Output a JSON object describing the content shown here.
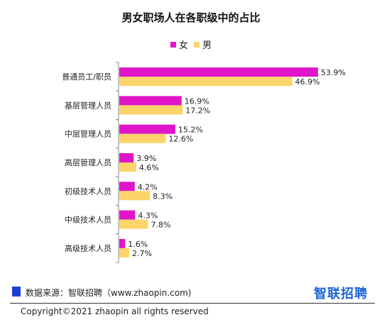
{
  "chart_data": {
    "type": "bar",
    "orientation": "horizontal",
    "title": "男女职场人在各职级中的占比",
    "categories": [
      "普通员工/职员",
      "基层管理人员",
      "中层管理人员",
      "高层管理人员",
      "初级技术人员",
      "中级技术人员",
      "高级技术人员"
    ],
    "series": [
      {
        "name": "女",
        "color": "#e014c8",
        "values": [
          53.9,
          16.9,
          15.2,
          3.9,
          4.2,
          4.3,
          1.6
        ],
        "labels": [
          "53.9%",
          "16.9%",
          "15.2%",
          "3.9%",
          "4.2%",
          "4.3%",
          "1.6%"
        ]
      },
      {
        "name": "男",
        "color": "#fdd46a",
        "values": [
          46.9,
          17.2,
          12.6,
          4.6,
          8.3,
          7.8,
          2.7
        ],
        "labels": [
          "46.9%",
          "17.2%",
          "12.6%",
          "4.6%",
          "8.3%",
          "7.8%",
          "2.7%"
        ]
      }
    ],
    "xlim": [
      0,
      56
    ],
    "grid": false,
    "legend": "top-center"
  },
  "footer": {
    "source": "数据来源：智联招聘（www.zhaopin.com)",
    "logo": "智联招聘",
    "copyright": "Copyright©2021 zhaopin all rights reserved"
  }
}
